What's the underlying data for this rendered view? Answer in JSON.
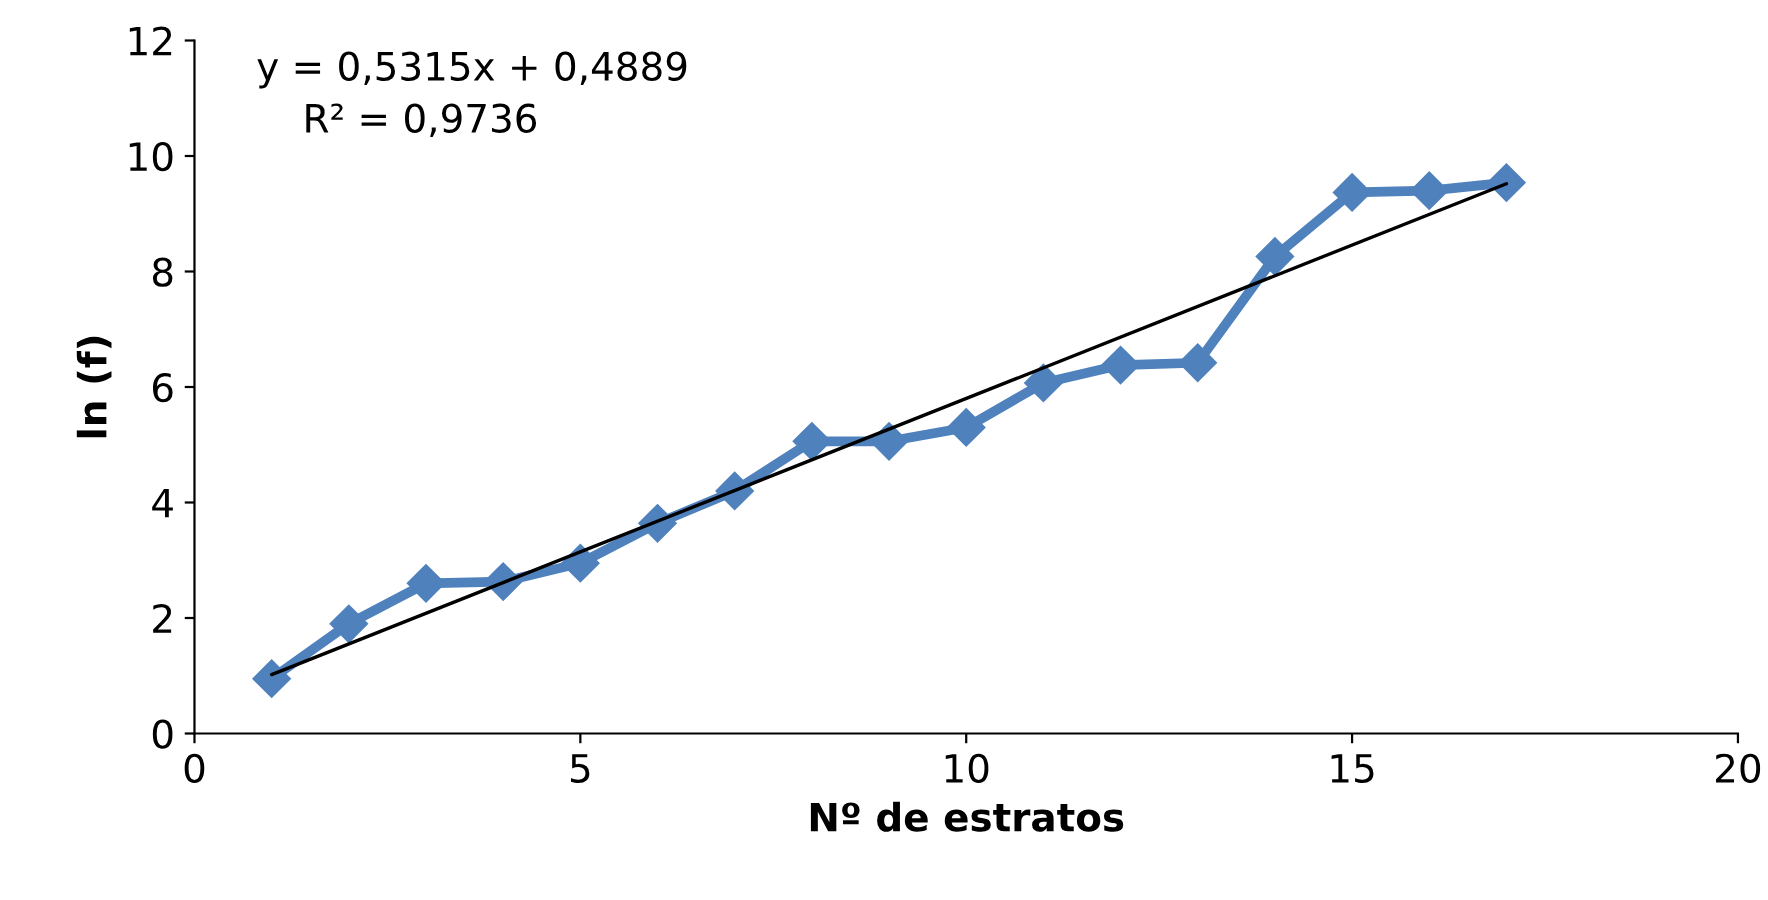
{
  "chart_data": {
    "type": "line",
    "xlabel": "Nº de estratos",
    "ylabel": "ln (f)",
    "x": [
      1,
      2,
      3,
      4,
      5,
      6,
      7,
      8,
      9,
      10,
      11,
      12,
      13,
      14,
      15,
      16,
      17
    ],
    "series": [
      {
        "color": "#4f81bd",
        "marker": "diamond",
        "values": [
          0.95,
          1.9,
          2.6,
          2.63,
          2.95,
          3.64,
          4.2,
          5.06,
          5.06,
          5.3,
          6.07,
          6.38,
          6.42,
          8.26,
          9.37,
          9.4,
          9.54
        ]
      },
      {
        "type": "line",
        "color": "#000000",
        "marker": "none",
        "x": [
          1,
          17
        ],
        "values": [
          1.02,
          9.52
        ]
      }
    ],
    "xlim": [
      0,
      20
    ],
    "xticks": [
      0,
      5,
      10,
      15,
      20
    ],
    "ylim": [
      0,
      12
    ],
    "yticks": [
      0,
      2,
      4,
      6,
      8,
      10,
      12
    ],
    "grid": false,
    "legend": false,
    "annotations": [
      "y = 0,5315x + 0,4889",
      "R² = 0,9736"
    ]
  }
}
